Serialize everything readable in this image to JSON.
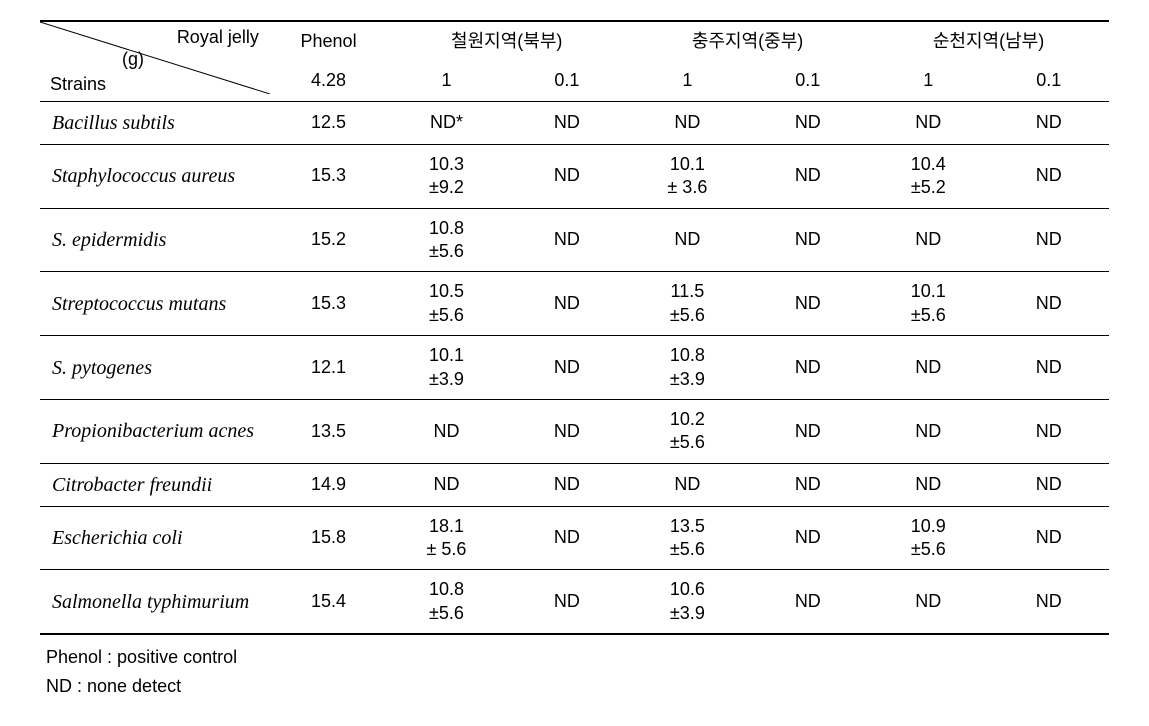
{
  "header": {
    "royal_jelly": "Royal jelly",
    "g": "(g)",
    "strains": "Strains",
    "phenol": "Phenol",
    "phenol_val": "4.28",
    "regions": [
      "철원지역(북부)",
      "충주지역(중부)",
      "순천지역(남부)"
    ],
    "sub_cols": [
      "1",
      "0.1",
      "1",
      "0.1",
      "1",
      "0.1"
    ]
  },
  "rows": [
    {
      "strain": "Bacillus subtils",
      "phenol": "12.5",
      "v1": "ND*",
      "v2": "ND",
      "v3": "ND",
      "v4": "ND",
      "v5": "ND",
      "v6": "ND"
    },
    {
      "strain": "Staphylococcus aureus",
      "phenol": "15.3",
      "v1": "10.3\n±9.2",
      "v2": "ND",
      "v3": "10.1\n± 3.6",
      "v4": "ND",
      "v5": "10.4\n±5.2",
      "v6": "ND"
    },
    {
      "strain": "S. epidermidis",
      "phenol": "15.2",
      "v1": "10.8\n±5.6",
      "v2": "ND",
      "v3": "ND",
      "v4": "ND",
      "v5": "ND",
      "v6": "ND"
    },
    {
      "strain": "Streptococcus mutans",
      "phenol": "15.3",
      "v1": "10.5\n±5.6",
      "v2": "ND",
      "v3": "11.5\n±5.6",
      "v4": "ND",
      "v5": "10.1\n±5.6",
      "v6": "ND"
    },
    {
      "strain": "S. pytogenes",
      "phenol": "12.1",
      "v1": "10.1\n±3.9",
      "v2": "ND",
      "v3": "10.8\n±3.9",
      "v4": "ND",
      "v5": "ND",
      "v6": "ND"
    },
    {
      "strain": "Propionibacterium acnes",
      "phenol": "13.5",
      "v1": "ND",
      "v2": "ND",
      "v3": "10.2\n±5.6",
      "v4": "ND",
      "v5": "ND",
      "v6": "ND"
    },
    {
      "strain": "Citrobacter freundii",
      "phenol": "14.9",
      "v1": "ND",
      "v2": "ND",
      "v3": "ND",
      "v4": "ND",
      "v5": "ND",
      "v6": "ND"
    },
    {
      "strain": "Escherichia coli",
      "phenol": "15.8",
      "v1": "18.1\n± 5.6",
      "v2": "ND",
      "v3": "13.5\n±5.6",
      "v4": "ND",
      "v5": "10.9\n±5.6",
      "v6": "ND"
    },
    {
      "strain": "Salmonella typhimurium",
      "phenol": "15.4",
      "v1": "10.8\n±5.6",
      "v2": "ND",
      "v3": "10.6\n±3.9",
      "v4": "ND",
      "v5": "ND",
      "v6": "ND"
    }
  ],
  "footnotes": [
    "Phenol :  positive control",
    "ND : none detect"
  ]
}
